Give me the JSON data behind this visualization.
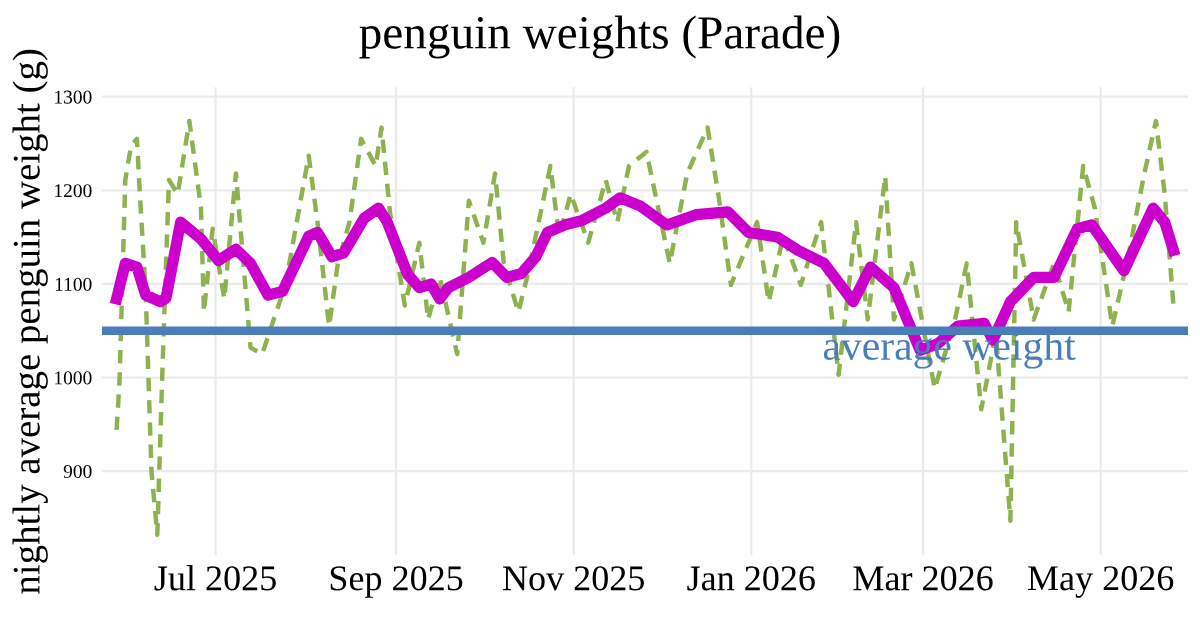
{
  "chart_data": {
    "type": "line",
    "title": "penguin weights (Parade)",
    "ylabel": "nightly average penguin weight (g)",
    "xlim": [
      "2025-05-23",
      "2026-05-31"
    ],
    "ylim": [
      810,
      1310
    ],
    "xticks": [
      {
        "value": "2025-07-01",
        "label": "Jul 2025"
      },
      {
        "value": "2025-09-01",
        "label": "Sep 2025"
      },
      {
        "value": "2025-11-01",
        "label": "Nov 2025"
      },
      {
        "value": "2026-01-01",
        "label": "Jan 2026"
      },
      {
        "value": "2026-03-01",
        "label": "Mar 2026"
      },
      {
        "value": "2026-05-01",
        "label": "May 2026"
      }
    ],
    "yticks": [
      900,
      1000,
      1100,
      1200,
      1300
    ],
    "grid": true,
    "ref_lines": [
      {
        "axis": "y",
        "value": 1050,
        "label": "average weight",
        "color": "#4a7ebb"
      }
    ],
    "series": [
      {
        "color": "#8db24e",
        "line_style": "dashed",
        "x": [
          "2025-05-28",
          "2025-05-29",
          "2025-05-31",
          "2025-06-02",
          "2025-06-04",
          "2025-06-05",
          "2025-06-07",
          "2025-06-09",
          "2025-06-11",
          "2025-06-13",
          "2025-06-15",
          "2025-06-18",
          "2025-06-22",
          "2025-06-26",
          "2025-06-27",
          "2025-06-30",
          "2025-07-04",
          "2025-07-08",
          "2025-07-13",
          "2025-07-17",
          "2025-07-21",
          "2025-07-25",
          "2025-08-02",
          "2025-08-05",
          "2025-08-09",
          "2025-08-12",
          "2025-08-16",
          "2025-08-20",
          "2025-08-25",
          "2025-08-27",
          "2025-08-30",
          "2025-09-04",
          "2025-09-09",
          "2025-09-12",
          "2025-09-16",
          "2025-09-22",
          "2025-09-26",
          "2025-10-01",
          "2025-10-05",
          "2025-10-08",
          "2025-10-13",
          "2025-10-16",
          "2025-10-24",
          "2025-10-27",
          "2025-10-31",
          "2025-11-06",
          "2025-11-12",
          "2025-11-16",
          "2025-11-20",
          "2025-11-26",
          "2025-12-04",
          "2025-12-10",
          "2025-12-17",
          "2025-12-21",
          "2025-12-25",
          "2026-01-03",
          "2026-01-07",
          "2026-01-12",
          "2026-01-18",
          "2026-01-25",
          "2026-01-31",
          "2026-02-06",
          "2026-02-10",
          "2026-02-16",
          "2026-02-19",
          "2026-02-25",
          "2026-03-05",
          "2026-03-12",
          "2026-03-16",
          "2026-03-21",
          "2026-03-26",
          "2026-03-31",
          "2026-04-02",
          "2026-04-08",
          "2026-04-15",
          "2026-04-20",
          "2026-04-25",
          "2026-04-29",
          "2026-05-05",
          "2026-05-10",
          "2026-05-16",
          "2026-05-20",
          "2026-05-23",
          "2026-05-26"
        ],
        "values": [
          944,
          995,
          1211,
          1248,
          1255,
          1196,
          1092,
          899,
          832,
          1032,
          1211,
          1196,
          1274,
          1181,
          1070,
          1159,
          1084,
          1218,
          1032,
          1025,
          1062,
          1099,
          1237,
          1166,
          1055,
          1122,
          1166,
          1255,
          1226,
          1267,
          1174,
          1077,
          1144,
          1062,
          1107,
          1025,
          1189,
          1144,
          1218,
          1122,
          1070,
          1107,
          1226,
          1151,
          1196,
          1144,
          1211,
          1166,
          1226,
          1241,
          1122,
          1218,
          1267,
          1189,
          1099,
          1166,
          1081,
          1151,
          1099,
          1166,
          1003,
          1166,
          1062,
          1215,
          1062,
          1122,
          988,
          1062,
          1122,
          966,
          1047,
          847,
          1166,
          1062,
          1122,
          1070,
          1226,
          1181,
          1055,
          1122,
          1218,
          1274,
          1196,
          1077
        ]
      },
      {
        "color": "#cc00cc",
        "line_style": "solid",
        "x": [
          "2025-05-28",
          "2025-05-31",
          "2025-06-04",
          "2025-06-07",
          "2025-06-12",
          "2025-06-14",
          "2025-06-19",
          "2025-06-26",
          "2025-07-02",
          "2025-07-08",
          "2025-07-13",
          "2025-07-19",
          "2025-07-24",
          "2025-08-02",
          "2025-08-05",
          "2025-08-10",
          "2025-08-14",
          "2025-08-21",
          "2025-08-26",
          "2025-08-29",
          "2025-09-05",
          "2025-09-09",
          "2025-09-13",
          "2025-09-16",
          "2025-09-19",
          "2025-09-26",
          "2025-10-04",
          "2025-10-09",
          "2025-10-14",
          "2025-10-19",
          "2025-10-23",
          "2025-10-29",
          "2025-11-04",
          "2025-11-12",
          "2025-11-17",
          "2025-11-24",
          "2025-12-03",
          "2025-12-13",
          "2025-12-24",
          "2025-12-31",
          "2026-01-10",
          "2026-01-17",
          "2026-01-26",
          "2026-02-05",
          "2026-02-11",
          "2026-02-19",
          "2026-02-28",
          "2026-03-06",
          "2026-03-13",
          "2026-03-22",
          "2026-03-25",
          "2026-03-31",
          "2026-04-08",
          "2026-04-15",
          "2026-04-23",
          "2026-04-28",
          "2026-05-09",
          "2026-05-19",
          "2026-05-23",
          "2026-05-26"
        ],
        "values": [
          1084,
          1122,
          1118,
          1088,
          1081,
          1085,
          1166,
          1148,
          1125,
          1137,
          1122,
          1088,
          1092,
          1151,
          1155,
          1129,
          1133,
          1170,
          1181,
          1166,
          1110,
          1096,
          1100,
          1084,
          1096,
          1107,
          1123,
          1107,
          1111,
          1129,
          1155,
          1163,
          1168,
          1181,
          1192,
          1183,
          1163,
          1174,
          1177,
          1155,
          1150,
          1136,
          1122,
          1081,
          1118,
          1096,
          1029,
          1036,
          1055,
          1058,
          1040,
          1081,
          1107,
          1107,
          1159,
          1163,
          1114,
          1181,
          1166,
          1136
        ]
      }
    ]
  }
}
